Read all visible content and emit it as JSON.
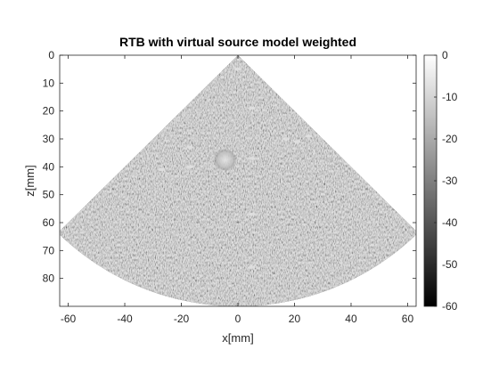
{
  "chart_data": {
    "type": "heatmap",
    "title": "RTB with virtual source model weighted",
    "xlabel": "x[mm]",
    "ylabel": "z[mm]",
    "xlim": [
      -63,
      63
    ],
    "ylim": [
      0,
      90
    ],
    "y_reversed": true,
    "xticks": [
      -60,
      -40,
      -20,
      0,
      20,
      40,
      60
    ],
    "yticks": [
      0,
      10,
      20,
      30,
      40,
      50,
      60,
      70,
      80
    ],
    "image_content": "ultrasound sector scan (B-mode speckle), apex at x=0 z=0, sector half-angle about 45 degrees, max depth about 90 mm",
    "sector": {
      "apex_x": 0,
      "apex_z": 0,
      "half_angle_deg": 45,
      "max_depth": 90
    },
    "bright_targets": [
      {
        "x": -4.5,
        "z": 37.5,
        "r": 4
      },
      {
        "x": 0,
        "z": 5,
        "r": 0.8
      },
      {
        "x": 5,
        "z": 19,
        "r": 0.8
      },
      {
        "x": 5,
        "z": 37,
        "r": 0.8
      },
      {
        "x": 5,
        "z": 57,
        "r": 0.8
      },
      {
        "x": 5,
        "z": 76,
        "r": 0.8
      },
      {
        "x": 17,
        "z": 30,
        "r": 0.8
      },
      {
        "x": 21,
        "z": 31,
        "r": 0.8
      },
      {
        "x": 25,
        "z": 29,
        "r": 0.8
      },
      {
        "x": -17,
        "z": 33,
        "r": 0.8
      },
      {
        "x": -17,
        "z": 40,
        "r": 0.8
      },
      {
        "x": -27,
        "z": 41,
        "r": 0.8
      }
    ],
    "colorbar": {
      "colormap": "gray",
      "range": [
        -60,
        0
      ],
      "ticks": [
        0,
        -10,
        -20,
        -30,
        -40,
        -50,
        -60
      ]
    }
  }
}
